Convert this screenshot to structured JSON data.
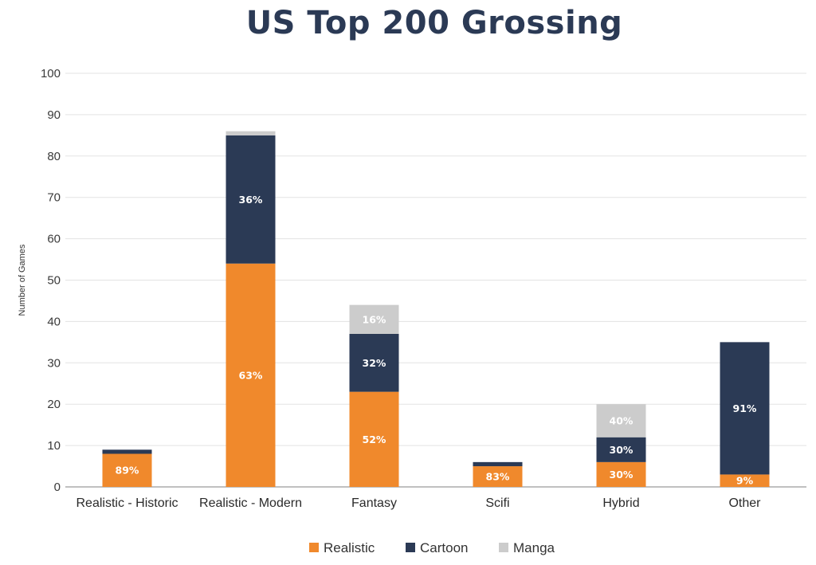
{
  "chart_data": {
    "type": "bar",
    "stacked": true,
    "title": "US Top 200 Grossing",
    "xlabel": "",
    "ylabel": "Number of Games",
    "ylim": [
      0,
      100
    ],
    "yticks": [
      0,
      10,
      20,
      30,
      40,
      50,
      60,
      70,
      80,
      90,
      100
    ],
    "grid": true,
    "legend_position": "bottom",
    "categories": [
      "Realistic - Historic",
      "Realistic - Modern",
      "Fantasy",
      "Scifi",
      "Hybrid",
      "Other"
    ],
    "series": [
      {
        "name": "Realistic",
        "color": "#f0892c",
        "values": [
          8,
          54,
          23,
          5,
          6,
          3
        ],
        "labels": [
          "89%",
          "63%",
          "52%",
          "83%",
          "30%",
          "9%"
        ]
      },
      {
        "name": "Cartoon",
        "color": "#2b3a55",
        "values": [
          1,
          31,
          14,
          1,
          6,
          32
        ],
        "labels": [
          "",
          "36%",
          "32%",
          "",
          "30%",
          "91%"
        ]
      },
      {
        "name": "Manga",
        "color": "#cccccc",
        "values": [
          0,
          1,
          7,
          0,
          8,
          0
        ],
        "labels": [
          "",
          "",
          "16%",
          "",
          "40%",
          ""
        ]
      }
    ]
  }
}
